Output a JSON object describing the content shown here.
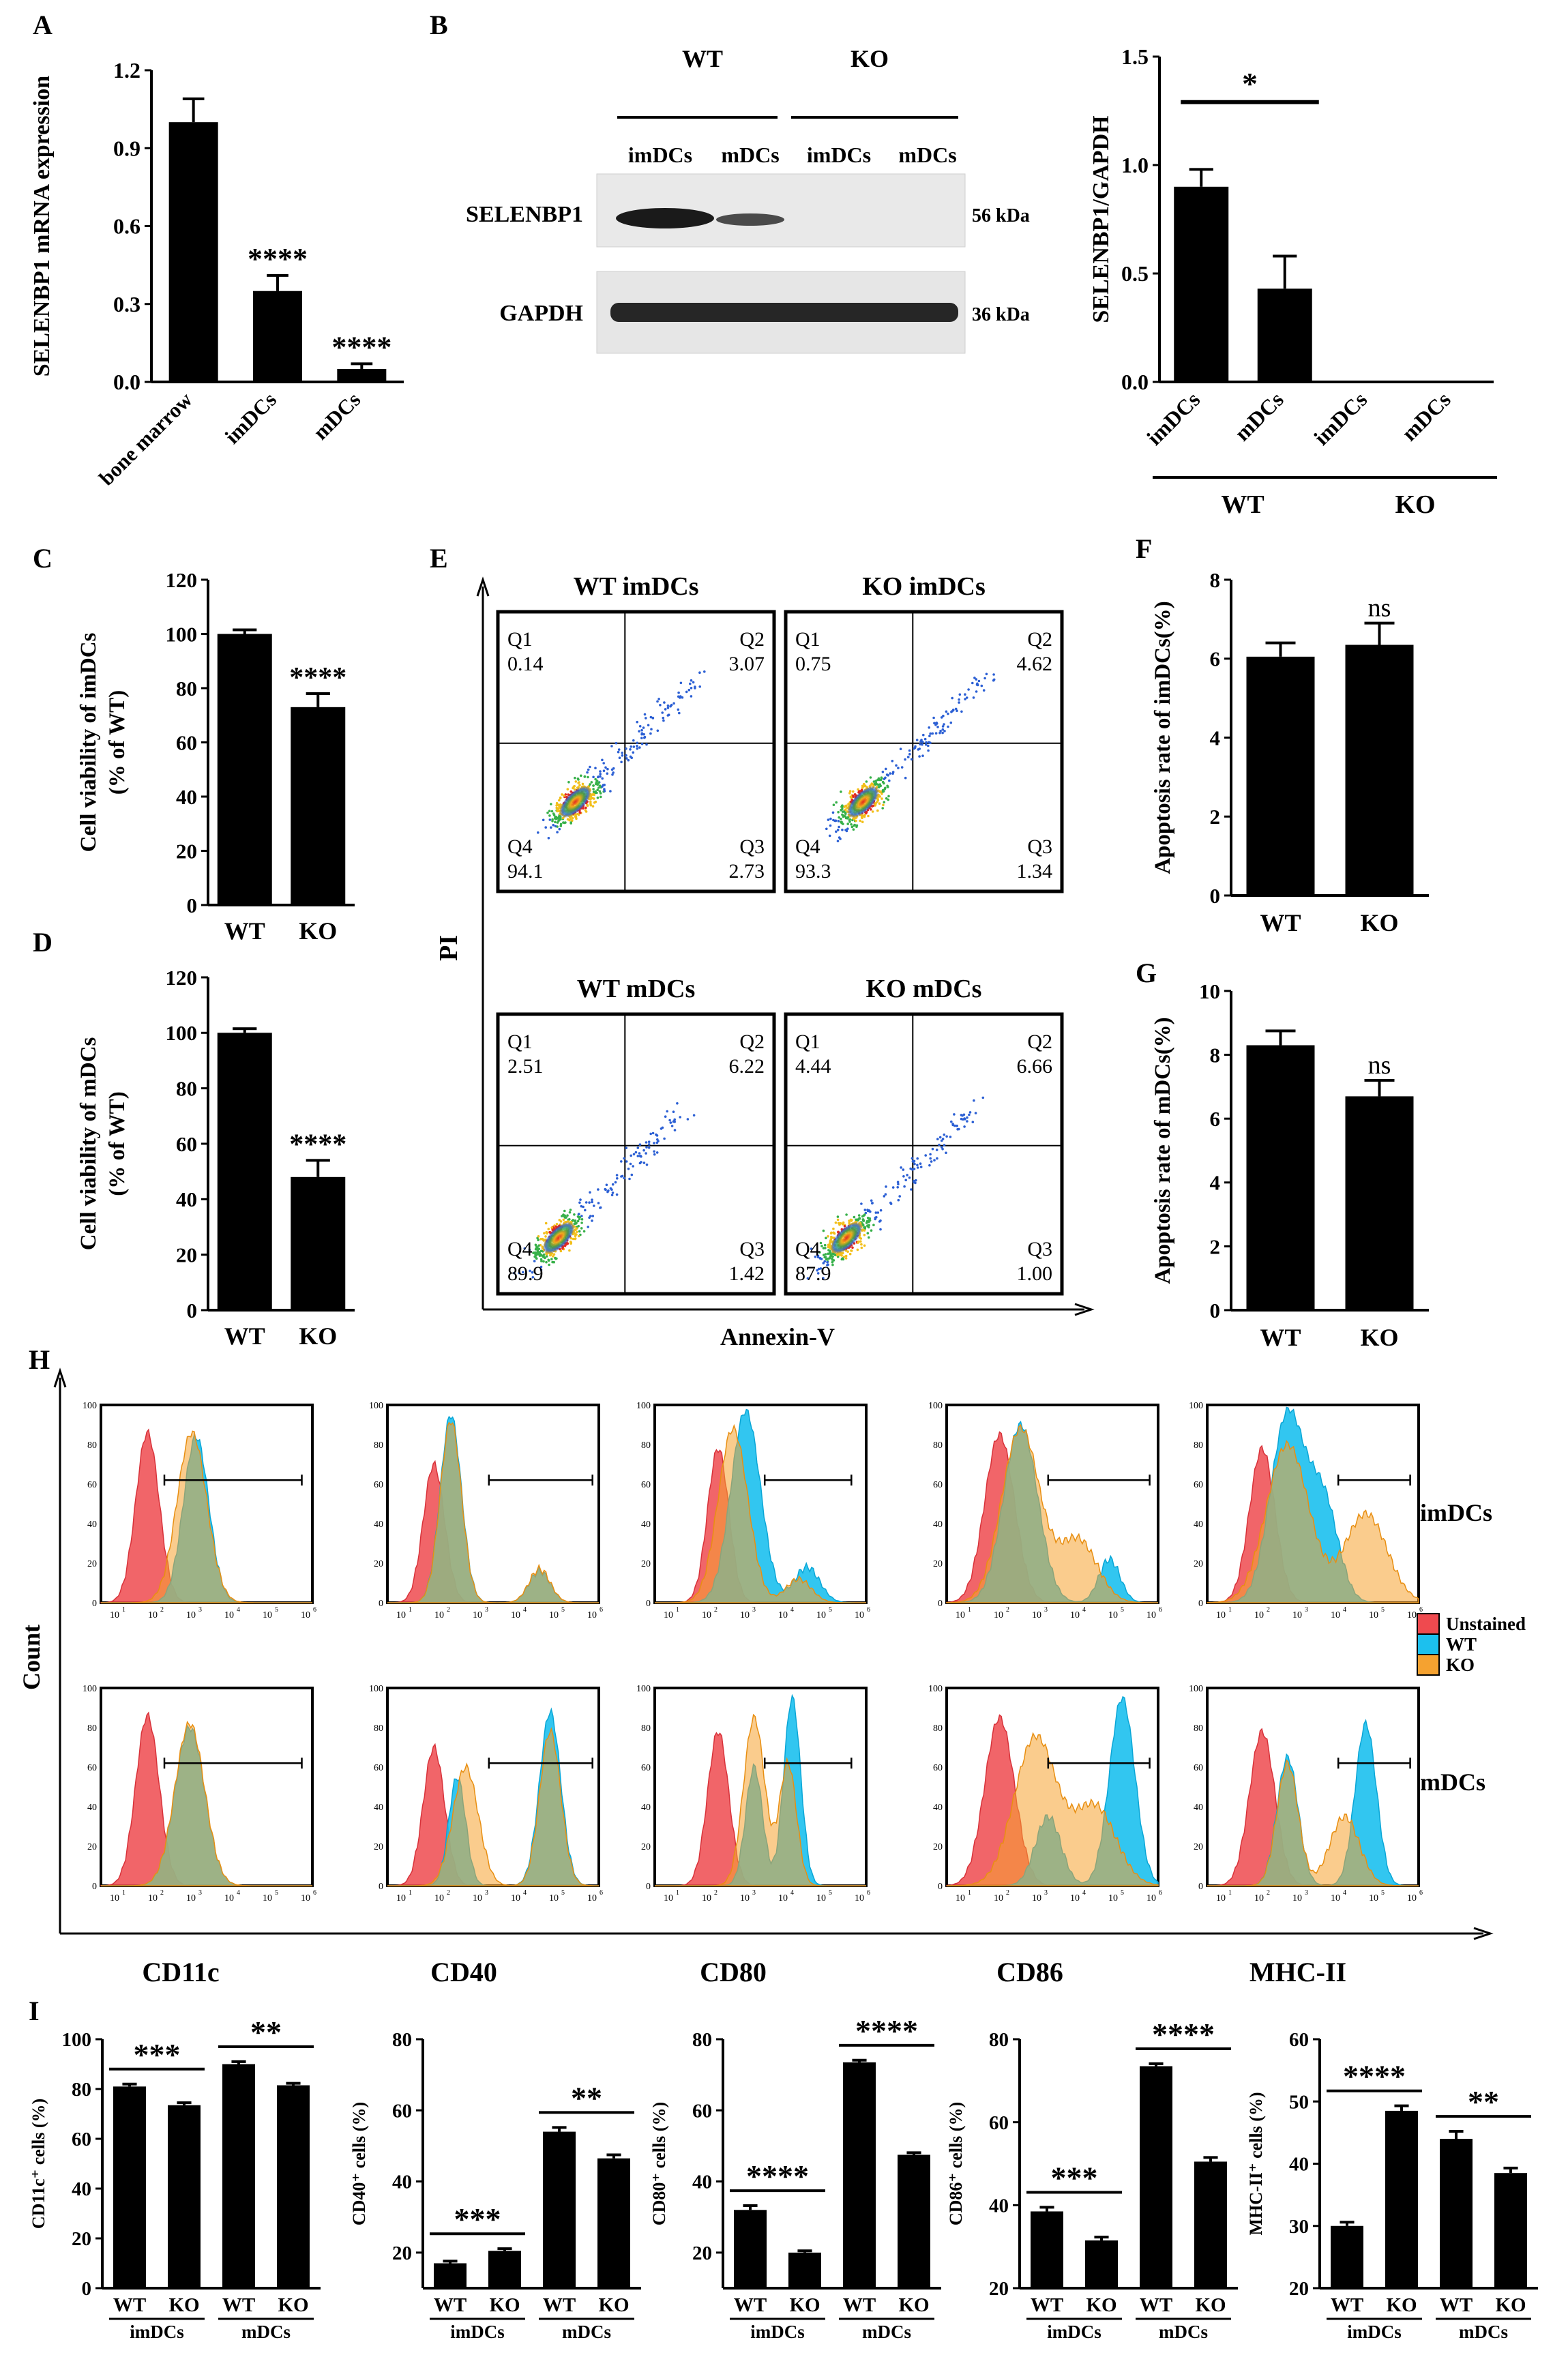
{
  "colors": {
    "ink": "#000000",
    "unstained": "#ef4a4f",
    "wt": "#1cc0ee",
    "ko": "#f5a230",
    "overlap": "#9fb38a"
  },
  "panel_letters": {
    "A": "A",
    "B": "B",
    "C": "C",
    "D": "D",
    "E": "E",
    "F": "F",
    "G": "G",
    "H": "H",
    "I": "I"
  },
  "chart_data": [
    {
      "id": "A",
      "type": "bar",
      "ylabel": "SELENBP1 mRNA expression",
      "categories": [
        "bone marrow",
        "imDCs",
        "mDCs"
      ],
      "values": [
        1.0,
        0.35,
        0.05
      ],
      "errors": [
        0.09,
        0.06,
        0.02
      ],
      "ylim": [
        0,
        1.2
      ],
      "yticks": [
        "0.0",
        "0.3",
        "0.6",
        "0.9",
        "1.2"
      ],
      "stars": [
        "",
        "****",
        "****"
      ]
    },
    {
      "id": "B_bar",
      "type": "bar",
      "ylabel": "SELENBP1/GAPDH",
      "categories": [
        "imDCs",
        "mDCs",
        "imDCs",
        "mDCs"
      ],
      "values": [
        0.9,
        0.43,
        0,
        0
      ],
      "errors": [
        0.08,
        0.15,
        0,
        0
      ],
      "ylim": [
        0,
        1.5
      ],
      "yticks": [
        "0.0",
        "0.5",
        "1.0",
        "1.5"
      ],
      "sig": "*",
      "groups": [
        "WT",
        "KO"
      ]
    },
    {
      "id": "C",
      "type": "bar",
      "ylabel": [
        "Cell viability of imDCs",
        "(% of WT)"
      ],
      "categories": [
        "WT",
        "KO"
      ],
      "values": [
        100,
        73
      ],
      "errors": [
        1.5,
        5
      ],
      "ylim": [
        0,
        120
      ],
      "yticks": [
        "0",
        "20",
        "40",
        "60",
        "80",
        "100",
        "120"
      ],
      "stars": [
        "",
        "****"
      ]
    },
    {
      "id": "D",
      "type": "bar",
      "ylabel": [
        "Cell viability of mDCs",
        "(% of WT)"
      ],
      "categories": [
        "WT",
        "KO"
      ],
      "values": [
        100,
        48
      ],
      "errors": [
        1.5,
        6
      ],
      "ylim": [
        0,
        120
      ],
      "yticks": [
        "0",
        "20",
        "40",
        "60",
        "80",
        "100",
        "120"
      ],
      "stars": [
        "",
        "****"
      ]
    },
    {
      "id": "F",
      "type": "bar",
      "ylabel": "Apoptosis rate of imDCs(%)",
      "categories": [
        "WT",
        "KO"
      ],
      "values": [
        6.05,
        6.35
      ],
      "errors": [
        0.35,
        0.55
      ],
      "ylim": [
        0,
        8
      ],
      "yticks": [
        "0",
        "2",
        "4",
        "6",
        "8"
      ],
      "stars": [
        "",
        "ns"
      ]
    },
    {
      "id": "G",
      "type": "bar",
      "ylabel": "Apoptosis rate of mDCs(%)",
      "categories": [
        "WT",
        "KO"
      ],
      "values": [
        8.3,
        6.7
      ],
      "errors": [
        0.45,
        0.5
      ],
      "ylim": [
        0,
        10
      ],
      "yticks": [
        "0",
        "2",
        "4",
        "6",
        "8",
        "10"
      ],
      "stars": [
        "",
        "ns"
      ]
    },
    {
      "id": "I1",
      "type": "bar",
      "ylabel": "CD11c⁺ cells (%)",
      "marker": "CD11c",
      "categories": [
        "WT",
        "KO",
        "WT",
        "KO"
      ],
      "groups": [
        "imDCs",
        "mDCs"
      ],
      "values": [
        81,
        73.5,
        90,
        81.5
      ],
      "errors": [
        1,
        1,
        1,
        0.8
      ],
      "ylim": [
        0,
        100
      ],
      "yticks": [
        "0",
        "20",
        "40",
        "60",
        "80",
        "100"
      ],
      "sig": [
        "***",
        "**"
      ]
    },
    {
      "id": "I2",
      "type": "bar",
      "ylabel": "CD40⁺ cells (%)",
      "marker": "CD40",
      "categories": [
        "WT",
        "KO",
        "WT",
        "KO"
      ],
      "groups": [
        "imDCs",
        "mDCs"
      ],
      "values": [
        17,
        20.5,
        54,
        46.5
      ],
      "errors": [
        0.6,
        0.6,
        1.2,
        1
      ],
      "ylim": [
        10,
        80
      ],
      "yticks": [
        "20",
        "40",
        "60",
        "80"
      ],
      "sig": [
        "***",
        "**"
      ]
    },
    {
      "id": "I3",
      "type": "bar",
      "ylabel": "CD80⁺ cells (%)",
      "marker": "CD80",
      "categories": [
        "WT",
        "KO",
        "WT",
        "KO"
      ],
      "groups": [
        "imDCs",
        "mDCs"
      ],
      "values": [
        32,
        20,
        73.5,
        47.5
      ],
      "errors": [
        1.2,
        0.5,
        0.6,
        0.6
      ],
      "ylim": [
        10,
        80
      ],
      "yticks": [
        "20",
        "40",
        "60",
        "80"
      ],
      "sig": [
        "****",
        "****"
      ]
    },
    {
      "id": "I4",
      "type": "bar",
      "ylabel": "CD86⁺ cells (%)",
      "marker": "CD86",
      "categories": [
        "WT",
        "KO",
        "WT",
        "KO"
      ],
      "groups": [
        "imDCs",
        "mDCs"
      ],
      "values": [
        38.5,
        31.5,
        73.5,
        50.5
      ],
      "errors": [
        1,
        0.8,
        0.6,
        1
      ],
      "ylim": [
        20,
        80
      ],
      "yticks": [
        "20",
        "40",
        "60",
        "80"
      ],
      "sig": [
        "***",
        "****"
      ]
    },
    {
      "id": "I5",
      "type": "bar",
      "ylabel": "MHC-II⁺ cells (%)",
      "marker": "MHC-II",
      "categories": [
        "WT",
        "KO",
        "WT",
        "KO"
      ],
      "groups": [
        "imDCs",
        "mDCs"
      ],
      "values": [
        30,
        48.5,
        44,
        38.5
      ],
      "errors": [
        0.6,
        0.8,
        1.2,
        0.8
      ],
      "ylim": [
        20,
        60
      ],
      "yticks": [
        "20",
        "30",
        "40",
        "50",
        "60"
      ],
      "sig": [
        "****",
        "**"
      ]
    }
  ],
  "blot": {
    "groups": [
      "WT",
      "KO"
    ],
    "lanes": [
      "imDCs",
      "mDCs",
      "imDCs",
      "mDCs"
    ],
    "proteins": [
      "SELENBP1",
      "GAPDH"
    ],
    "sizes": [
      "56 kDa",
      "36 kDa"
    ]
  },
  "flow": {
    "xlabel": "Annexin-V",
    "ylabel": "PI",
    "plots": [
      {
        "title": "WT imDCs",
        "q1": "0.14",
        "q2": "3.07",
        "q3": "2.73",
        "q4": "94.1"
      },
      {
        "title": "KO imDCs",
        "q1": "0.75",
        "q2": "4.62",
        "q3": "1.34",
        "q4": "93.3"
      },
      {
        "title": "WT mDCs",
        "q1": "2.51",
        "q2": "6.22",
        "q3": "1.42",
        "q4": "89.9"
      },
      {
        "title": "KO mDCs",
        "q1": "4.44",
        "q2": "6.66",
        "q3": "1.00",
        "q4": "87.9"
      }
    ],
    "quadrant_labels": [
      "Q1",
      "Q2",
      "Q3",
      "Q4"
    ]
  },
  "histograms": {
    "ylabel": "Count",
    "rows": [
      "imDCs",
      "mDCs"
    ],
    "markers": [
      "CD11c",
      "CD40",
      "CD80",
      "CD86",
      "MHC-II"
    ],
    "yticks": [
      "0",
      "20",
      "40",
      "60",
      "80",
      "100"
    ],
    "xticks": [
      "10",
      "10",
      "10",
      "10",
      "10",
      "10"
    ],
    "xexps": [
      "1",
      "2",
      "3",
      "4",
      "5",
      "6"
    ],
    "legend": [
      "Unstained",
      "WT",
      "KO"
    ]
  }
}
